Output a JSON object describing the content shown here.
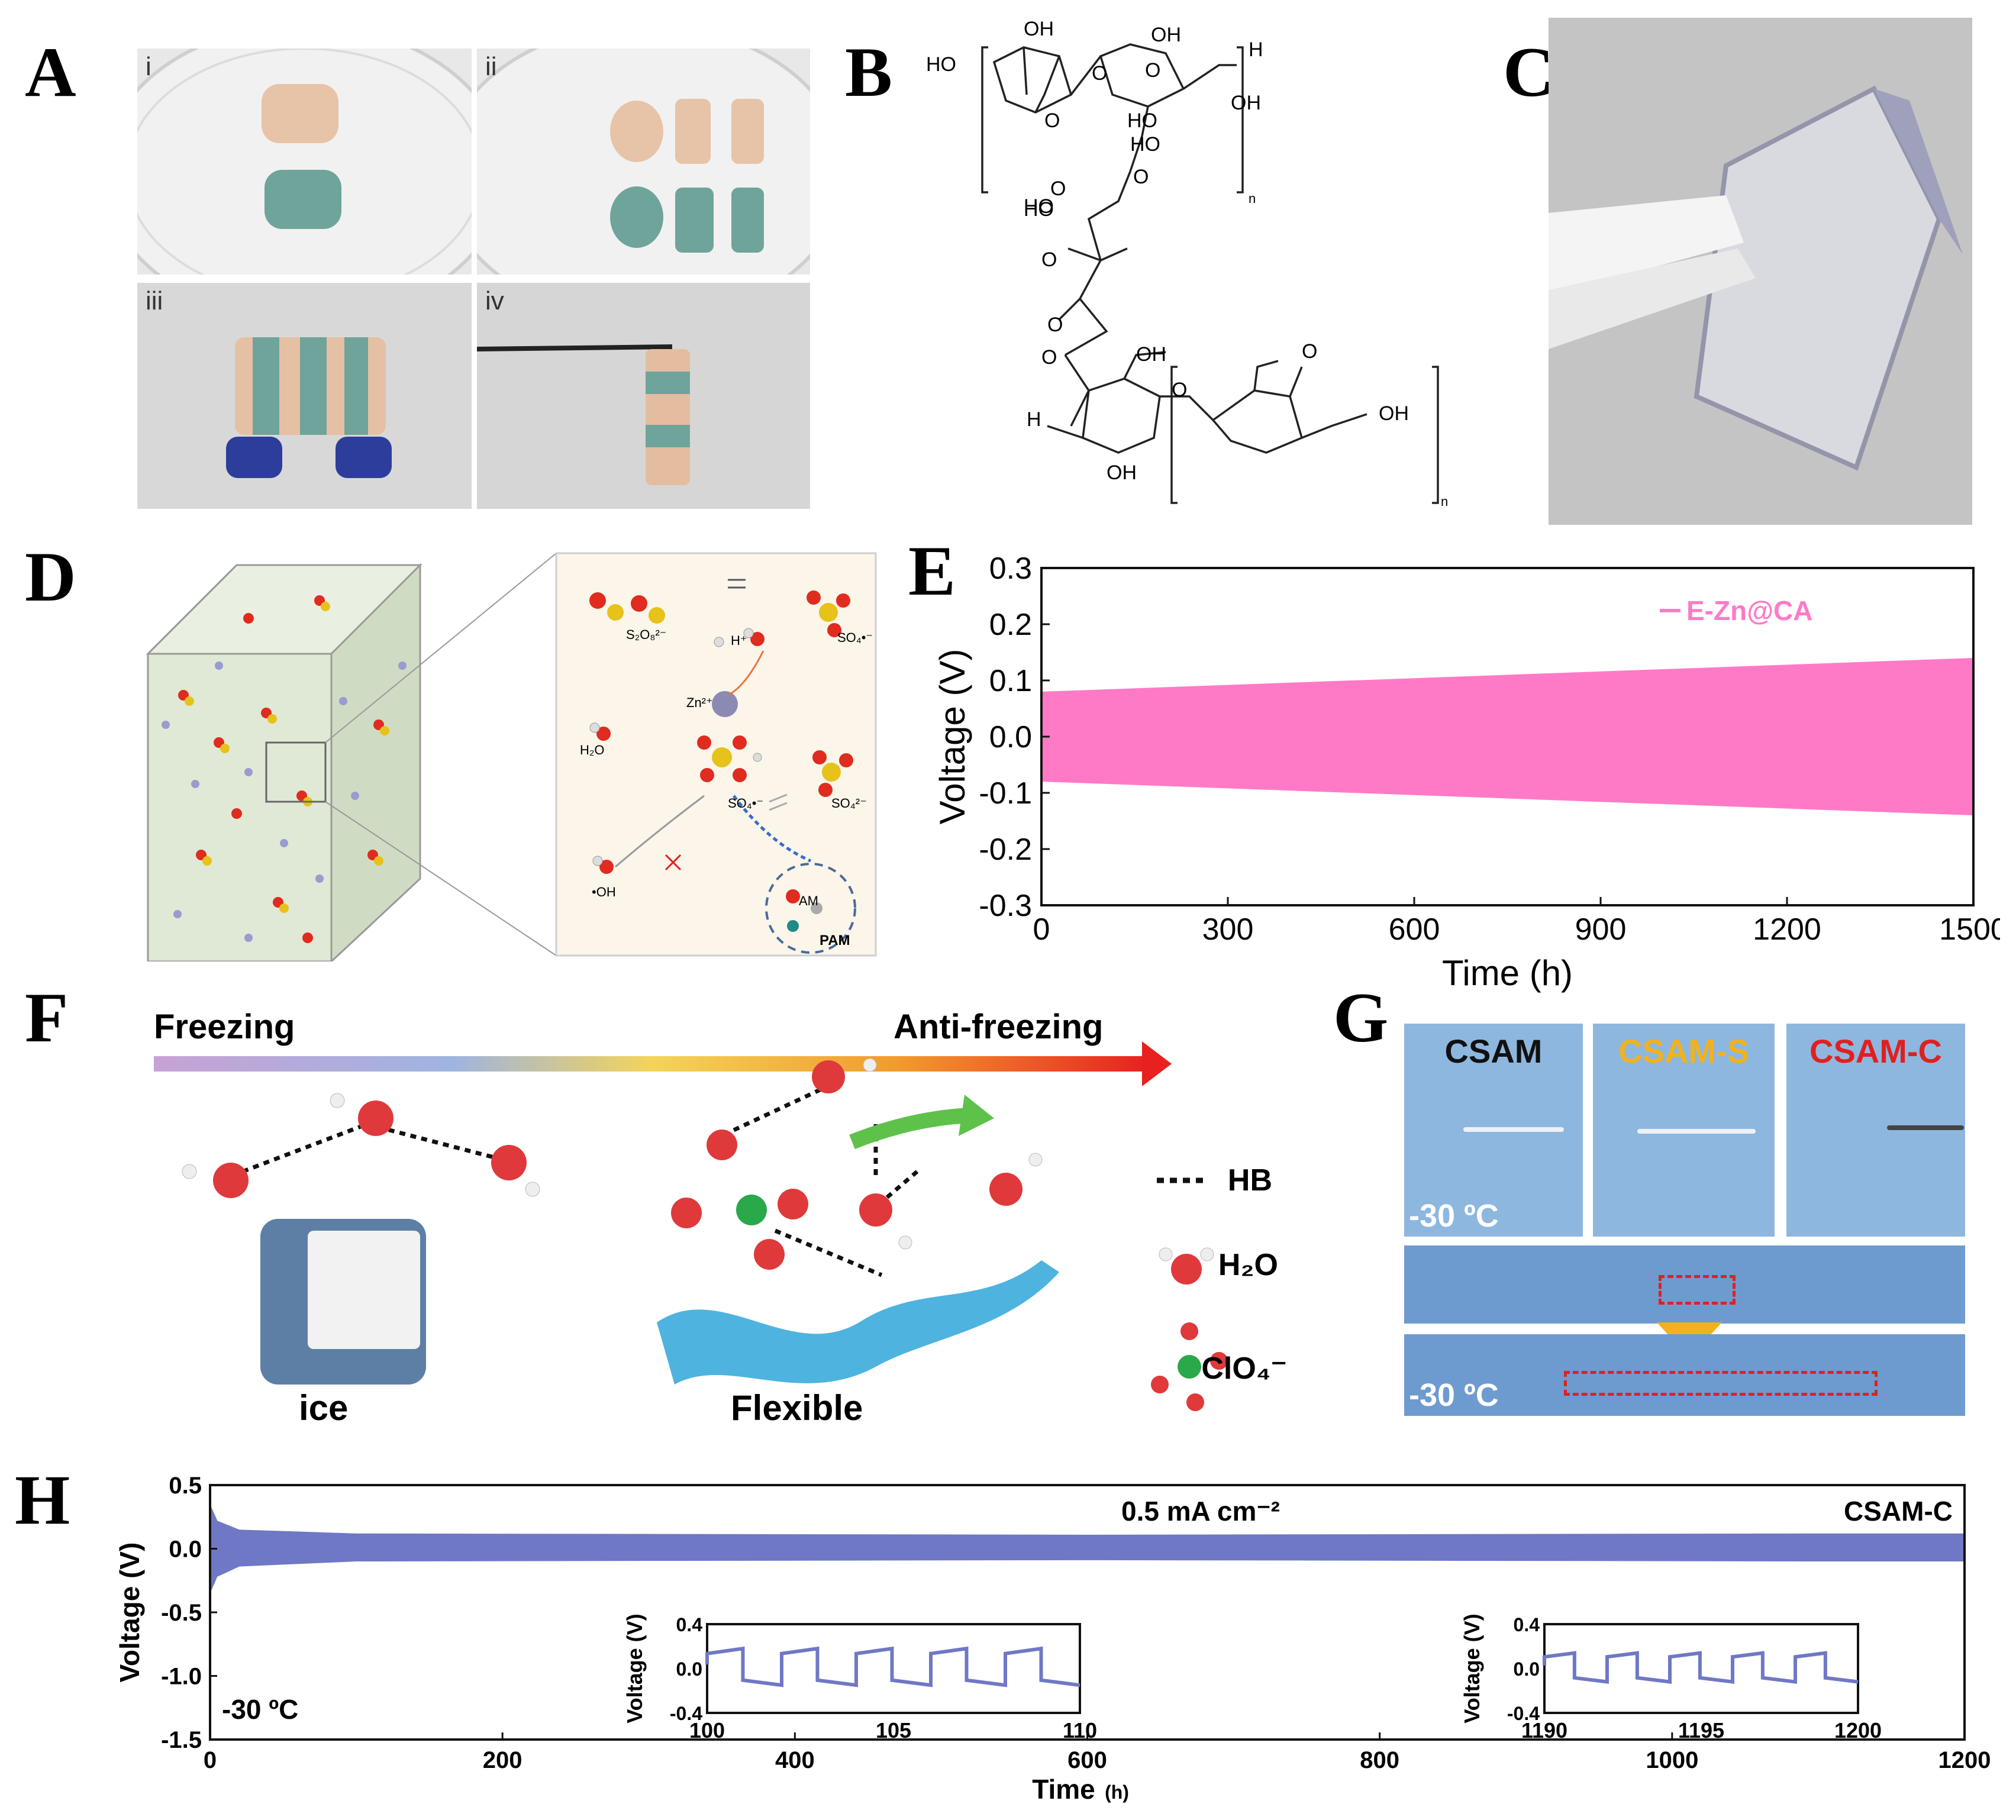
{
  "panels": {
    "A": {
      "label": "A",
      "sub": [
        "i",
        "ii",
        "iii",
        "iv"
      ]
    },
    "B": {
      "label": "B",
      "atoms": [
        "HO",
        "OH",
        "OH",
        "H",
        "O",
        "O",
        "HO",
        "O",
        "HO",
        "OH",
        "O",
        "HO",
        "O",
        "O",
        "O",
        "HO",
        "O",
        "H",
        "O",
        "OH",
        "OH",
        "OH",
        "O",
        "n",
        "n"
      ]
    },
    "C": {
      "label": "C"
    },
    "D": {
      "label": "D",
      "species": [
        "S₂O₈²⁻",
        "H⁺",
        "SO₄•⁻",
        "Zn²⁺",
        "H₂O",
        "SO₄•⁻",
        "SO₄²⁻",
        "•OH",
        "AM",
        "PAM"
      ]
    },
    "E": {
      "label": "E",
      "legend": "E-Zn@CA",
      "color": "#ff7ac6"
    },
    "F": {
      "label": "F",
      "freezing": "Freezing",
      "anti_freezing": "Anti-freezing",
      "ice": "ice",
      "flexible": "Flexible",
      "legend": {
        "hb": "HB",
        "h2o": "H₂O",
        "clo4": "ClO₄⁻"
      }
    },
    "G": {
      "label": "G",
      "samples": [
        "CSAM",
        "CSAM-S",
        "CSAM-C"
      ],
      "sample_colors": [
        "#111111",
        "#f2b21b",
        "#e02020"
      ],
      "temp1": "-30 ºC",
      "temp2": "-30 ºC"
    },
    "H": {
      "label": "H",
      "current": "0.5 mA cm⁻²",
      "tag": "CSAM-C",
      "temp": "-30 ºC",
      "color": "#6f78c4"
    }
  },
  "chart_data": [
    {
      "id": "E",
      "type": "line",
      "title": "",
      "xlabel": "Time (h)",
      "ylabel": "Voltage (V)",
      "xlim": [
        0,
        1500
      ],
      "ylim": [
        -0.3,
        0.3
      ],
      "xticks": [
        0,
        300,
        600,
        900,
        1200,
        1500
      ],
      "yticks": [
        -0.3,
        -0.2,
        -0.1,
        0.0,
        0.1,
        0.2,
        0.3
      ],
      "xtick_labels": [
        "0",
        "300",
        "600",
        "900",
        "1200",
        "1500"
      ],
      "ytick_labels": [
        "-0.3",
        "-0.2",
        "-0.1",
        "0.0",
        "0.1",
        "0.2",
        "0.3"
      ],
      "series": [
        {
          "name": "E-Zn@CA",
          "x": [
            0,
            1500
          ],
          "upper": [
            0.08,
            0.14
          ],
          "lower": [
            -0.08,
            -0.14
          ]
        }
      ]
    },
    {
      "id": "H",
      "type": "line",
      "xlabel": "Time",
      "xlabel_unit": "(h)",
      "ylabel": "Voltage (V)",
      "xlim": [
        0,
        1200
      ],
      "ylim": [
        -1.5,
        0.5
      ],
      "xticks": [
        0,
        200,
        400,
        600,
        800,
        1000,
        1200
      ],
      "yticks": [
        -1.5,
        -1.0,
        -0.5,
        0.0,
        0.5
      ],
      "xtick_labels": [
        "0",
        "200",
        "400",
        "600",
        "800",
        "1000",
        "1200"
      ],
      "ytick_labels": [
        "-1.5",
        "-1.0",
        "-0.5",
        "0.0",
        "0.5"
      ],
      "series": [
        {
          "name": "CSAM-C",
          "x": [
            0,
            5,
            20,
            100,
            600,
            1100,
            1200
          ],
          "upper": [
            0.35,
            0.22,
            0.15,
            0.12,
            0.11,
            0.12,
            0.12
          ],
          "lower": [
            -0.35,
            -0.22,
            -0.14,
            -0.1,
            -0.09,
            -0.1,
            -0.1
          ]
        }
      ],
      "insets": [
        {
          "xlim": [
            100,
            110
          ],
          "ylim": [
            -0.4,
            0.4
          ],
          "xticks": [
            100,
            105,
            110
          ],
          "yticks": [
            -0.4,
            0.0,
            0.4
          ],
          "xtick_labels": [
            "100",
            "105",
            "110"
          ],
          "ytick_labels": [
            "-0.4",
            "0.0",
            "0.4"
          ],
          "ylabel": "Voltage (V)",
          "cycle_start": 100,
          "period": 2,
          "high": 0.18,
          "low": -0.15
        },
        {
          "xlim": [
            1190,
            1200
          ],
          "ylim": [
            -0.4,
            0.4
          ],
          "xticks": [
            1190,
            1195,
            1200
          ],
          "yticks": [
            -0.4,
            0.0,
            0.4
          ],
          "xtick_labels": [
            "1190",
            "1195",
            "1200"
          ],
          "ytick_labels": [
            "-0.4",
            "0.0",
            "0.4"
          ],
          "ylabel": "Voltage (V)",
          "cycle_start": 1190,
          "period": 2,
          "high": 0.14,
          "low": -0.12
        }
      ]
    }
  ]
}
